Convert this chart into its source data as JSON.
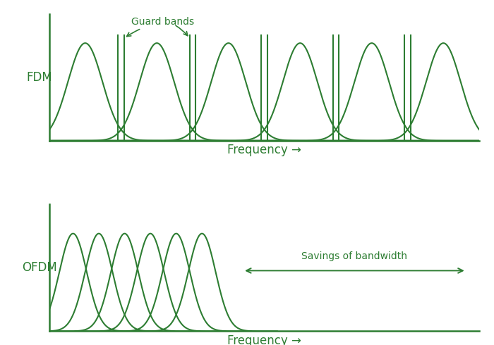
{
  "green_color": "#2d7d32",
  "bg_color": "#ffffff",
  "fdm_n_carriers": 6,
  "ofdm_n_carriers": 6,
  "title_fdm": "FDM",
  "title_ofdm": "OFDM",
  "xlabel": "Frequency →",
  "guard_label": "Guard bands",
  "savings_label": "Savings of bandwidth",
  "line_width": 1.5
}
